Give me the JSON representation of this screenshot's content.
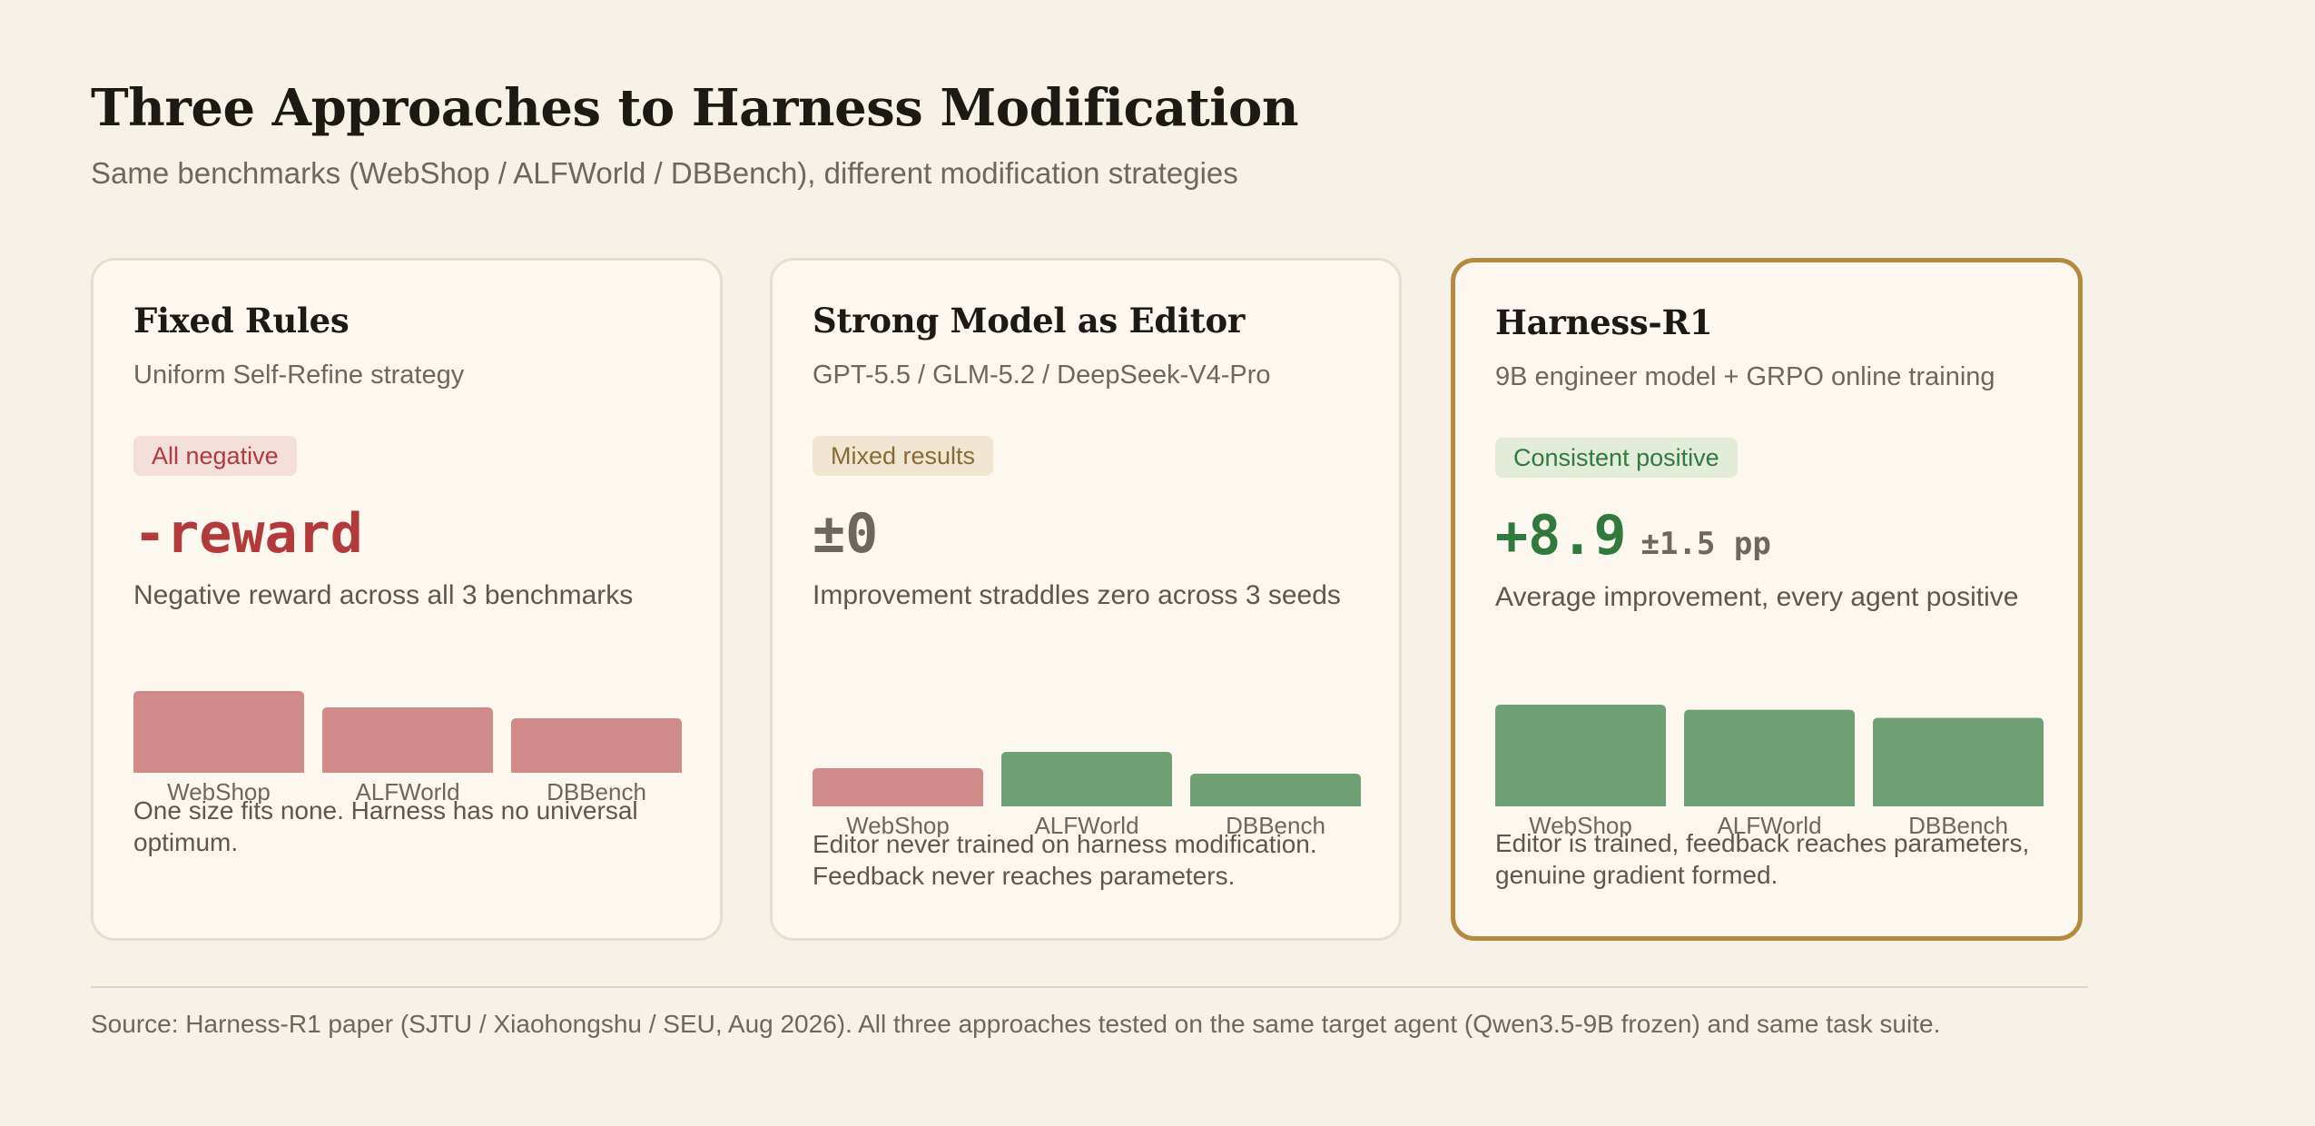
{
  "header": {
    "title": "Three Approaches to Harness Modification",
    "subtitle": "Same benchmarks (WebShop / ALFWorld / DBBench), different modification strategies"
  },
  "colors": {
    "negative": "#d08a87",
    "positive": "#6fa174",
    "highlight_border": "#b58a3e"
  },
  "cards": [
    {
      "title": "Fixed Rules",
      "subtitle": "Uniform Self-Refine strategy",
      "badge": "All negative",
      "metric": "-reward",
      "metric_suffix": "",
      "description": "Negative reward across all 3 benchmarks",
      "note": "One size fits none. Harness has no universal optimum."
    },
    {
      "title": "Strong Model as Editor",
      "subtitle": "GPT-5.5 / GLM-5.2 / DeepSeek-V4-Pro",
      "badge": "Mixed results",
      "metric": "±0",
      "metric_suffix": "",
      "description": "Improvement straddles zero across 3 seeds",
      "note": "Editor never trained on harness modification. Feedback never reaches parameters."
    },
    {
      "title": "Harness-R1",
      "subtitle": "9B engineer model + GRPO online training",
      "badge": "Consistent positive",
      "metric": "+8.9",
      "metric_suffix": "±1.5 pp",
      "description": "Average improvement, every agent positive",
      "note": "Editor is trained, feedback reaches parameters, genuine gradient formed."
    }
  ],
  "chart_data": [
    {
      "type": "bar",
      "categories": [
        "WebShop",
        "ALFWorld",
        "DBBench"
      ],
      "values": [
        -7.5,
        -6.0,
        -5.0
      ],
      "colors": [
        "negative",
        "negative",
        "negative"
      ],
      "ylabel": "",
      "ylim": [
        -7.5,
        0
      ]
    },
    {
      "type": "bar",
      "categories": [
        "WebShop",
        "ALFWorld",
        "DBBench"
      ],
      "values": [
        -3.5,
        5.0,
        3.0
      ],
      "colors": [
        "negative",
        "positive",
        "positive"
      ],
      "ylabel": "",
      "ylim": [
        -7.5,
        7.5
      ]
    },
    {
      "type": "bar",
      "categories": [
        "WebShop",
        "ALFWorld",
        "DBBench"
      ],
      "values": [
        10.0,
        9.5,
        8.7
      ],
      "colors": [
        "positive",
        "positive",
        "positive"
      ],
      "ylabel": "",
      "ylim": [
        0,
        10
      ]
    }
  ],
  "footer": {
    "source": "Source: Harness-R1 paper (SJTU / Xiaohongshu / SEU, Aug 2026). All three approaches tested on the same target agent (Qwen3.5-9B frozen) and same task suite."
  }
}
